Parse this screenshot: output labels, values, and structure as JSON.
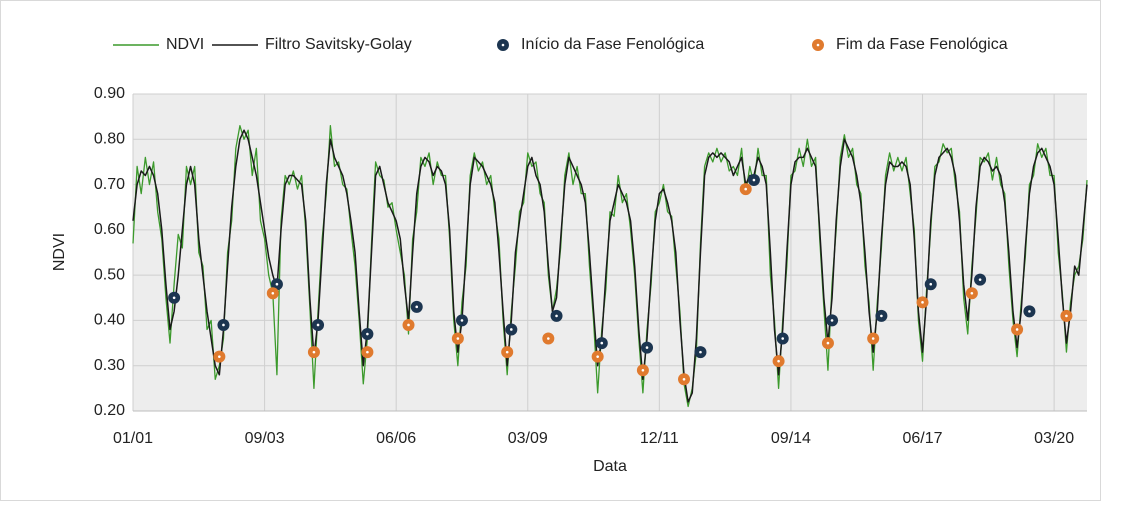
{
  "chart_data": {
    "type": "line",
    "x_label": "Data",
    "y_label": "NDVI",
    "legend": "top",
    "grid": true,
    "categories": [
      "01/01",
      null,
      null,
      null,
      null,
      null,
      null,
      null,
      null,
      null,
      null,
      null,
      null,
      null,
      null,
      null,
      null,
      null,
      null,
      null,
      null,
      null,
      null,
      null,
      null,
      null,
      null,
      null,
      null,
      null,
      null,
      null,
      "09/03",
      null,
      null,
      null,
      null,
      null,
      null,
      null,
      null,
      null,
      null,
      null,
      null,
      null,
      null,
      null,
      null,
      null,
      null,
      null,
      null,
      null,
      null,
      null,
      null,
      null,
      null,
      null,
      null,
      null,
      null,
      null,
      "06/06",
      null,
      null,
      null,
      null,
      null,
      null,
      null,
      null,
      null,
      null,
      null,
      null,
      null,
      null,
      null,
      null,
      null,
      null,
      null,
      null,
      null,
      null,
      null,
      null,
      null,
      null,
      null,
      null,
      null,
      null,
      null,
      "03/09",
      null,
      null,
      null,
      null,
      null,
      null,
      null,
      null,
      null,
      null,
      null,
      null,
      null,
      null,
      null,
      null,
      null,
      null,
      null,
      null,
      null,
      null,
      null,
      null,
      null,
      null,
      null,
      null,
      null,
      null,
      null,
      "12/11",
      null,
      null,
      null,
      null,
      null,
      null,
      null,
      null,
      null,
      null,
      null,
      null,
      null,
      null,
      null,
      null,
      null,
      null,
      null,
      null,
      null,
      null,
      null,
      null,
      null,
      null,
      null,
      null,
      null,
      null,
      null,
      "09/14",
      null,
      null,
      null,
      null,
      null,
      null,
      null,
      null,
      null,
      null,
      null,
      null,
      null,
      null,
      null,
      null,
      null,
      null,
      null,
      null,
      null,
      null,
      null,
      null,
      null,
      null,
      null,
      null,
      null,
      null,
      null,
      "06/17",
      null,
      null,
      null,
      null,
      null,
      null,
      null,
      null,
      null,
      null,
      null,
      null,
      null,
      null,
      null,
      null,
      null,
      null,
      null,
      null,
      null,
      null,
      null,
      null,
      null,
      null,
      null,
      null,
      null,
      null,
      null,
      "03/20",
      null,
      null,
      null,
      null,
      null,
      null,
      null,
      null
    ],
    "ylim": [
      0.2,
      0.9
    ],
    "yticks": [
      {
        "value": 0.2,
        "label": "0.20"
      },
      {
        "value": 0.3,
        "label": "0.30"
      },
      {
        "value": 0.4,
        "label": "0.40"
      },
      {
        "value": 0.5,
        "label": "0.50"
      },
      {
        "value": 0.6,
        "label": "0.60"
      },
      {
        "value": 0.7,
        "label": "0.70"
      },
      {
        "value": 0.8,
        "label": "0.80"
      },
      {
        "value": 0.9,
        "label": "0.90"
      }
    ],
    "series": [
      {
        "name": "NDVI",
        "type": "line",
        "color": "#3c9a2c",
        "values": [
          0.57,
          0.74,
          0.68,
          0.76,
          0.7,
          0.75,
          0.64,
          0.58,
          0.45,
          0.35,
          0.48,
          0.59,
          0.56,
          0.74,
          0.7,
          0.74,
          0.55,
          0.52,
          0.38,
          0.4,
          0.27,
          0.3,
          0.36,
          0.55,
          0.62,
          0.78,
          0.83,
          0.8,
          0.82,
          0.72,
          0.78,
          0.62,
          0.58,
          0.5,
          0.46,
          0.28,
          0.62,
          0.72,
          0.7,
          0.73,
          0.69,
          0.72,
          0.6,
          0.43,
          0.25,
          0.42,
          0.58,
          0.68,
          0.83,
          0.74,
          0.75,
          0.7,
          0.69,
          0.6,
          0.52,
          0.4,
          0.26,
          0.36,
          0.57,
          0.75,
          0.72,
          0.71,
          0.65,
          0.66,
          0.6,
          0.55,
          0.5,
          0.37,
          0.58,
          0.64,
          0.76,
          0.74,
          0.77,
          0.7,
          0.75,
          0.72,
          0.72,
          0.58,
          0.4,
          0.3,
          0.44,
          0.52,
          0.72,
          0.77,
          0.73,
          0.75,
          0.7,
          0.72,
          0.64,
          0.58,
          0.4,
          0.28,
          0.42,
          0.52,
          0.64,
          0.66,
          0.77,
          0.74,
          0.75,
          0.68,
          0.66,
          0.5,
          0.42,
          0.47,
          0.56,
          0.72,
          0.77,
          0.7,
          0.74,
          0.68,
          0.68,
          0.52,
          0.4,
          0.24,
          0.38,
          0.47,
          0.64,
          0.63,
          0.72,
          0.66,
          0.68,
          0.6,
          0.5,
          0.36,
          0.24,
          0.38,
          0.48,
          0.64,
          0.66,
          0.7,
          0.64,
          0.63,
          0.52,
          0.42,
          0.26,
          0.21,
          0.25,
          0.33,
          0.57,
          0.74,
          0.77,
          0.75,
          0.78,
          0.75,
          0.77,
          0.73,
          0.74,
          0.72,
          0.78,
          0.68,
          0.74,
          0.7,
          0.78,
          0.72,
          0.72,
          0.5,
          0.4,
          0.25,
          0.4,
          0.52,
          0.72,
          0.73,
          0.78,
          0.74,
          0.8,
          0.74,
          0.76,
          0.58,
          0.43,
          0.29,
          0.48,
          0.6,
          0.76,
          0.81,
          0.76,
          0.78,
          0.7,
          0.68,
          0.52,
          0.44,
          0.29,
          0.44,
          0.56,
          0.72,
          0.77,
          0.73,
          0.76,
          0.73,
          0.76,
          0.68,
          0.6,
          0.4,
          0.31,
          0.47,
          0.6,
          0.74,
          0.75,
          0.79,
          0.77,
          0.78,
          0.7,
          0.64,
          0.45,
          0.37,
          0.52,
          0.63,
          0.76,
          0.75,
          0.77,
          0.71,
          0.76,
          0.7,
          0.68,
          0.52,
          0.4,
          0.32,
          0.44,
          0.54,
          0.7,
          0.72,
          0.79,
          0.76,
          0.78,
          0.72,
          0.72,
          0.55,
          0.46,
          0.33,
          0.44,
          0.5,
          0.52,
          0.58,
          0.71
        ]
      },
      {
        "name": "Filtro Savitsky-Golay",
        "type": "line",
        "color": "#1a1a1a",
        "values": [
          0.62,
          0.7,
          0.73,
          0.72,
          0.74,
          0.72,
          0.68,
          0.6,
          0.48,
          0.38,
          0.42,
          0.5,
          0.6,
          0.7,
          0.74,
          0.7,
          0.58,
          0.5,
          0.42,
          0.36,
          0.3,
          0.28,
          0.38,
          0.52,
          0.65,
          0.74,
          0.8,
          0.82,
          0.8,
          0.76,
          0.72,
          0.66,
          0.6,
          0.54,
          0.5,
          0.47,
          0.6,
          0.7,
          0.72,
          0.72,
          0.71,
          0.7,
          0.62,
          0.45,
          0.32,
          0.4,
          0.55,
          0.7,
          0.8,
          0.76,
          0.74,
          0.72,
          0.68,
          0.62,
          0.55,
          0.42,
          0.3,
          0.38,
          0.55,
          0.72,
          0.74,
          0.7,
          0.66,
          0.64,
          0.62,
          0.58,
          0.48,
          0.4,
          0.55,
          0.68,
          0.74,
          0.76,
          0.75,
          0.72,
          0.74,
          0.73,
          0.7,
          0.6,
          0.42,
          0.33,
          0.4,
          0.55,
          0.7,
          0.76,
          0.75,
          0.74,
          0.72,
          0.7,
          0.66,
          0.55,
          0.42,
          0.3,
          0.4,
          0.55,
          0.62,
          0.68,
          0.74,
          0.76,
          0.72,
          0.7,
          0.64,
          0.52,
          0.42,
          0.45,
          0.58,
          0.7,
          0.76,
          0.74,
          0.72,
          0.7,
          0.66,
          0.55,
          0.42,
          0.3,
          0.36,
          0.5,
          0.62,
          0.66,
          0.7,
          0.68,
          0.66,
          0.62,
          0.52,
          0.38,
          0.27,
          0.36,
          0.5,
          0.62,
          0.68,
          0.69,
          0.66,
          0.62,
          0.55,
          0.4,
          0.28,
          0.22,
          0.24,
          0.36,
          0.55,
          0.72,
          0.76,
          0.77,
          0.76,
          0.77,
          0.76,
          0.75,
          0.72,
          0.74,
          0.76,
          0.7,
          0.72,
          0.72,
          0.76,
          0.74,
          0.7,
          0.55,
          0.38,
          0.28,
          0.38,
          0.55,
          0.7,
          0.75,
          0.76,
          0.76,
          0.78,
          0.76,
          0.74,
          0.6,
          0.45,
          0.35,
          0.45,
          0.62,
          0.74,
          0.8,
          0.78,
          0.76,
          0.72,
          0.66,
          0.55,
          0.42,
          0.33,
          0.42,
          0.58,
          0.7,
          0.75,
          0.74,
          0.74,
          0.75,
          0.74,
          0.7,
          0.58,
          0.42,
          0.33,
          0.45,
          0.62,
          0.72,
          0.76,
          0.77,
          0.78,
          0.76,
          0.72,
          0.62,
          0.48,
          0.4,
          0.5,
          0.65,
          0.74,
          0.76,
          0.75,
          0.73,
          0.74,
          0.72,
          0.66,
          0.55,
          0.42,
          0.34,
          0.42,
          0.56,
          0.68,
          0.74,
          0.77,
          0.78,
          0.76,
          0.74,
          0.7,
          0.58,
          0.45,
          0.35,
          0.42,
          0.52,
          0.5,
          0.6,
          0.7
        ]
      },
      {
        "name": "Início da Fase Fenológica",
        "type": "scatter",
        "color": "#1c3550",
        "values": [
          null,
          null,
          null,
          null,
          null,
          null,
          null,
          null,
          null,
          null,
          0.45,
          null,
          null,
          null,
          null,
          null,
          null,
          null,
          null,
          null,
          null,
          null,
          0.39,
          null,
          null,
          null,
          null,
          null,
          null,
          null,
          null,
          null,
          null,
          null,
          null,
          0.48,
          null,
          null,
          null,
          null,
          null,
          null,
          null,
          null,
          null,
          0.39,
          null,
          null,
          null,
          null,
          null,
          null,
          null,
          null,
          null,
          null,
          null,
          0.37,
          null,
          null,
          null,
          null,
          null,
          null,
          null,
          null,
          null,
          null,
          null,
          0.43,
          null,
          null,
          null,
          null,
          null,
          null,
          null,
          null,
          null,
          null,
          0.4,
          null,
          null,
          null,
          null,
          null,
          null,
          null,
          null,
          null,
          null,
          null,
          0.38,
          null,
          null,
          null,
          null,
          null,
          null,
          null,
          null,
          null,
          null,
          0.41,
          null,
          null,
          null,
          null,
          null,
          null,
          null,
          null,
          null,
          null,
          0.35,
          null,
          null,
          null,
          null,
          null,
          null,
          null,
          null,
          null,
          null,
          0.34,
          null,
          null,
          null,
          null,
          null,
          null,
          null,
          null,
          null,
          null,
          null,
          null,
          0.33,
          null,
          null,
          null,
          null,
          null,
          null,
          null,
          null,
          null,
          null,
          null,
          null,
          0.71,
          null,
          null,
          null,
          null,
          null,
          null,
          0.36,
          null,
          null,
          null,
          null,
          null,
          null,
          null,
          null,
          null,
          null,
          null,
          0.4,
          null,
          null,
          null,
          null,
          null,
          null,
          null,
          null,
          null,
          null,
          null,
          0.41,
          null,
          null,
          null,
          null,
          null,
          null,
          null,
          null,
          null,
          null,
          null,
          0.48,
          null,
          null,
          null,
          null,
          null,
          null,
          null,
          null,
          null,
          null,
          null,
          0.49,
          null,
          null,
          null,
          null,
          null,
          null,
          null,
          null,
          null,
          null,
          null,
          0.42,
          null,
          null,
          null,
          null,
          null,
          null,
          null,
          null,
          null,
          null,
          null,
          null,
          null,
          null
        ]
      },
      {
        "name": "Fim da Fase Fenológica",
        "type": "scatter",
        "color": "#e07a2e",
        "values": [
          null,
          null,
          null,
          null,
          null,
          null,
          null,
          null,
          null,
          null,
          null,
          null,
          null,
          null,
          null,
          null,
          null,
          null,
          null,
          null,
          null,
          0.32,
          null,
          null,
          null,
          null,
          null,
          null,
          null,
          null,
          null,
          null,
          null,
          null,
          0.46,
          null,
          null,
          null,
          null,
          null,
          null,
          null,
          null,
          null,
          0.33,
          null,
          null,
          null,
          null,
          null,
          null,
          null,
          null,
          null,
          null,
          null,
          null,
          0.33,
          null,
          null,
          null,
          null,
          null,
          null,
          null,
          null,
          null,
          0.39,
          null,
          null,
          null,
          null,
          null,
          null,
          null,
          null,
          null,
          null,
          null,
          0.36,
          null,
          null,
          null,
          null,
          null,
          null,
          null,
          null,
          null,
          null,
          null,
          0.33,
          null,
          null,
          null,
          null,
          null,
          null,
          null,
          null,
          null,
          0.36,
          null,
          null,
          null,
          null,
          null,
          null,
          null,
          null,
          null,
          null,
          null,
          0.32,
          null,
          null,
          null,
          null,
          null,
          null,
          null,
          null,
          null,
          null,
          0.29,
          null,
          null,
          null,
          null,
          null,
          null,
          null,
          null,
          null,
          0.27,
          null,
          null,
          null,
          null,
          null,
          null,
          null,
          null,
          null,
          null,
          null,
          null,
          null,
          null,
          0.69,
          null,
          null,
          null,
          null,
          null,
          null,
          null,
          0.31,
          null,
          null,
          null,
          null,
          null,
          null,
          null,
          null,
          null,
          null,
          null,
          0.35,
          null,
          null,
          null,
          null,
          null,
          null,
          null,
          null,
          null,
          null,
          0.36,
          null,
          null,
          null,
          null,
          null,
          null,
          null,
          null,
          null,
          null,
          null,
          0.44,
          null,
          null,
          null,
          null,
          null,
          null,
          null,
          null,
          null,
          null,
          null,
          0.46,
          null,
          null,
          null,
          null,
          null,
          null,
          null,
          null,
          null,
          null,
          0.38,
          null,
          null,
          null,
          null,
          null,
          null,
          null,
          null,
          null,
          null,
          null,
          0.41,
          null,
          null,
          null,
          null,
          null
        ]
      }
    ]
  }
}
